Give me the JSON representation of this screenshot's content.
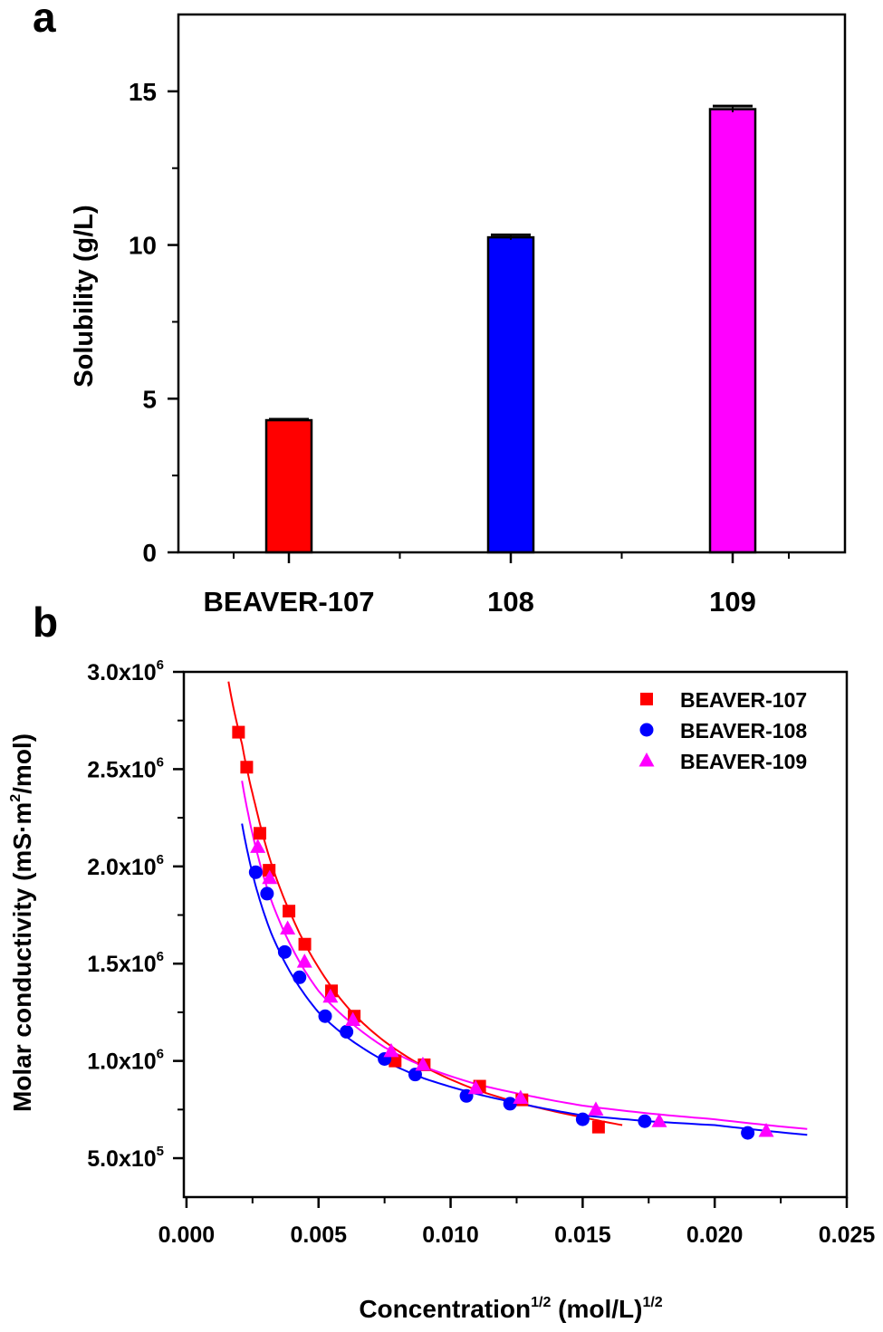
{
  "panels": {
    "a_label": "a",
    "b_label": "b"
  },
  "chart_data": [
    {
      "type": "bar",
      "ylabel": "Solubility (g/L)",
      "xlabel": "",
      "ylim": [
        0,
        17.5
      ],
      "yticks": [
        0,
        5,
        10,
        15
      ],
      "yticklabels": [
        "0",
        "5",
        "10",
        "15"
      ],
      "categories": [
        "BEAVER-107",
        "108",
        "109"
      ],
      "values": [
        4.3,
        10.25,
        14.42
      ],
      "errors": [
        0.03,
        0.08,
        0.1
      ],
      "colors": [
        "#ff0000",
        "#0000ff",
        "#ff00ff"
      ],
      "grid": false,
      "legend": "none"
    },
    {
      "type": "scatter",
      "xlabel": "Concentration",
      "xlabel_sup": "1/2",
      "xlabel_unit": " (mol/L)",
      "xlabel_unit_sup": "1/2",
      "ylabel": "Molar conductivity (mS·m",
      "ylabel_sup": "2",
      "ylabel_end": "/mol)",
      "xlim": [
        -0.0001,
        0.025
      ],
      "ylim": [
        300000,
        3000000
      ],
      "xticks": [
        0,
        0.005,
        0.01,
        0.015,
        0.02,
        0.025
      ],
      "xticklabels": [
        "0.000",
        "0.005",
        "0.010",
        "0.015",
        "0.020",
        "0.025"
      ],
      "yticks": [
        500000,
        1000000,
        1500000,
        2000000,
        2500000,
        3000000
      ],
      "yticklabels": [
        {
          "mant": "5.0x10",
          "exp": "5"
        },
        {
          "mant": "1.0x10",
          "exp": "6"
        },
        {
          "mant": "1.5x10",
          "exp": "6"
        },
        {
          "mant": "2.0x10",
          "exp": "6"
        },
        {
          "mant": "2.5x10",
          "exp": "6"
        },
        {
          "mant": "3.0x10",
          "exp": "6"
        }
      ],
      "legend": "top-right",
      "grid": false,
      "series": [
        {
          "name": "BEAVER-107",
          "marker": "square",
          "color": "#ff0000",
          "x": [
            0.00197,
            0.00228,
            0.00278,
            0.00313,
            0.00388,
            0.00448,
            0.00549,
            0.00635,
            0.0079,
            0.009,
            0.0111,
            0.0127,
            0.0156
          ],
          "y": [
            2690000,
            2510000,
            2170000,
            1980000,
            1770000,
            1600000,
            1360000,
            1230000,
            1000000,
            980000,
            870000,
            800000,
            660000
          ],
          "fit": {
            "x": [
              0.00159,
              0.0021,
              0.0026,
              0.0032,
              0.004,
              0.005,
              0.0062,
              0.0075,
              0.009,
              0.011,
              0.013,
              0.015,
              0.0165
            ],
            "y": [
              2950000,
              2630000,
              2320000,
              2020000,
              1740000,
              1480000,
              1260000,
              1100000,
              970000,
              850000,
              770000,
              710000,
              670000
            ]
          }
        },
        {
          "name": "BEAVER-108",
          "marker": "circle",
          "color": "#0000ff",
          "x": [
            0.00262,
            0.00305,
            0.00372,
            0.00428,
            0.00525,
            0.00606,
            0.0075,
            0.00866,
            0.0106,
            0.01225,
            0.015,
            0.01735,
            0.02125
          ],
          "y": [
            1970000,
            1860000,
            1560000,
            1430000,
            1230000,
            1150000,
            1010000,
            930000,
            820000,
            780000,
            700000,
            690000,
            630000
          ],
          "fit": {
            "x": [
              0.0021,
              0.0026,
              0.0032,
              0.004,
              0.005,
              0.0062,
              0.0075,
              0.009,
              0.011,
              0.013,
              0.015,
              0.0175,
              0.02,
              0.0235
            ],
            "y": [
              2220000,
              1910000,
              1660000,
              1440000,
              1250000,
              1110000,
              1000000,
              910000,
              830000,
              770000,
              720000,
              690000,
              670000,
              620000
            ]
          }
        },
        {
          "name": "BEAVER-109",
          "marker": "triangle",
          "color": "#ff00ff",
          "x": [
            0.0027,
            0.00315,
            0.00383,
            0.00447,
            0.00545,
            0.0063,
            0.00775,
            0.00895,
            0.01095,
            0.01265,
            0.0155,
            0.0179,
            0.02195
          ],
          "y": [
            2100000,
            1940000,
            1680000,
            1510000,
            1330000,
            1210000,
            1050000,
            980000,
            860000,
            810000,
            750000,
            690000,
            640000
          ],
          "fit": {
            "x": [
              0.0021,
              0.0026,
              0.0032,
              0.004,
              0.005,
              0.0062,
              0.0075,
              0.009,
              0.011,
              0.013,
              0.015,
              0.0175,
              0.02,
              0.0235
            ],
            "y": [
              2440000,
              2110000,
              1830000,
              1580000,
              1360000,
              1200000,
              1070000,
              970000,
              880000,
              820000,
              770000,
              730000,
              700000,
              650000
            ]
          }
        }
      ]
    }
  ]
}
